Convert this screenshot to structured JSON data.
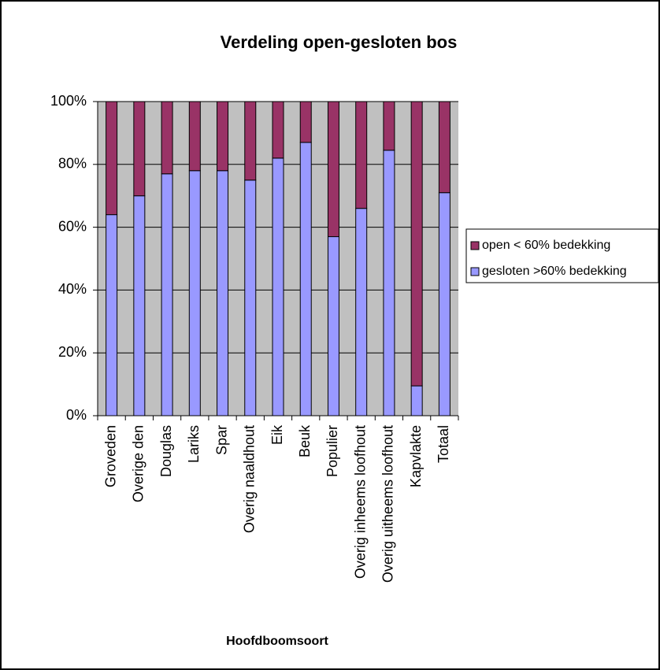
{
  "chart_data": {
    "type": "stacked_bar",
    "title": "Verdeling open-gesloten bos",
    "x_label": "Hoofdboomsoort",
    "categories": [
      "Groveden",
      "Overige den",
      "Douglas",
      "Lariks",
      "Spar",
      "Overig naaldhout",
      "Eik",
      "Beuk",
      "Populier",
      "Overig inheems loofhout",
      "Overig uitheems loofhout",
      "Kapvlakte",
      "Totaal"
    ],
    "series": [
      {
        "name": "gesloten >60% bedekking",
        "color": "#9999ff",
        "values": [
          64,
          70,
          77,
          78,
          78,
          75,
          82,
          87,
          57,
          66,
          84.5,
          9.5,
          71
        ]
      },
      {
        "name": "open < 60% bedekking",
        "color": "#993366",
        "values": [
          36,
          30,
          23,
          22,
          22,
          25,
          18,
          13,
          43,
          34,
          15.5,
          90.5,
          29
        ]
      }
    ],
    "ylim": [
      0,
      100
    ],
    "yticks": [
      {
        "value": 0,
        "label": "0%"
      },
      {
        "value": 20,
        "label": "20%"
      },
      {
        "value": 40,
        "label": "40%"
      },
      {
        "value": 60,
        "label": "60%"
      },
      {
        "value": 80,
        "label": "80%"
      },
      {
        "value": 100,
        "label": "100%"
      }
    ],
    "grid": true,
    "legend": "right"
  }
}
